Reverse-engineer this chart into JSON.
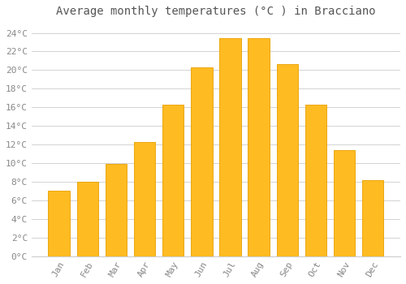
{
  "title": "Average monthly temperatures (°C ) in Bracciano",
  "months": [
    "Jan",
    "Feb",
    "Mar",
    "Apr",
    "May",
    "Jun",
    "Jul",
    "Aug",
    "Sep",
    "Oct",
    "Nov",
    "Dec"
  ],
  "values": [
    7.0,
    8.0,
    9.9,
    12.3,
    16.3,
    20.3,
    23.4,
    23.4,
    20.6,
    16.3,
    11.4,
    8.2
  ],
  "bar_color": "#FFBB22",
  "bar_edge_color": "#E8A000",
  "background_color": "#FFFFFF",
  "grid_color": "#CCCCCC",
  "text_color": "#888888",
  "title_color": "#555555",
  "ylim": [
    0,
    25
  ],
  "ytick_step": 2,
  "title_fontsize": 10,
  "tick_fontsize": 8,
  "bar_width": 0.75
}
